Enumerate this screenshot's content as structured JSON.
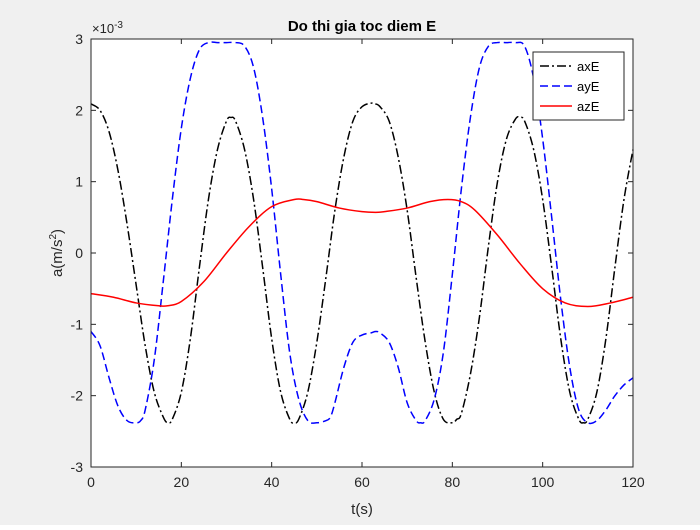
{
  "chart_data": {
    "type": "line",
    "title": "Do thi gia toc diem E",
    "xlabel": "t(s)",
    "ylabel_main": "a(m/s",
    "ylabel_sup": "2",
    "ylabel_close": ")",
    "exponent_base": "×10",
    "exponent_power": "-3",
    "xlim": [
      0,
      120
    ],
    "ylim": [
      -3,
      3
    ],
    "y_scale_factor": 0.001,
    "xticks": [
      0,
      20,
      40,
      60,
      80,
      100,
      120
    ],
    "yticks": [
      -3,
      -2,
      -1,
      0,
      1,
      2,
      3
    ],
    "grid": false,
    "legend_position": "top-right",
    "series": [
      {
        "name": "axE",
        "color": "#000000",
        "dash": "dash-dot",
        "x": [
          0,
          2,
          4,
          6,
          8,
          10,
          12,
          14,
          16,
          17,
          18,
          20,
          22,
          24,
          26,
          28,
          30,
          31,
          32,
          34,
          36,
          38,
          40,
          42,
          44,
          45,
          46,
          48,
          50,
          52,
          54,
          56,
          58,
          60,
          62,
          63,
          64,
          66,
          68,
          70,
          72,
          74,
          76,
          78,
          80,
          81,
          82,
          84,
          86,
          88,
          90,
          92,
          94,
          95,
          96,
          98,
          100,
          102,
          104,
          106,
          108,
          109,
          110,
          112,
          114,
          116,
          118,
          120
        ],
        "y": [
          2.09,
          2.0,
          1.7,
          1.15,
          0.4,
          -0.45,
          -1.3,
          -1.95,
          -2.3,
          -2.38,
          -2.33,
          -1.95,
          -1.2,
          -0.2,
          0.75,
          1.45,
          1.85,
          1.9,
          1.85,
          1.45,
          0.75,
          -0.2,
          -1.2,
          -1.95,
          -2.33,
          -2.38,
          -2.33,
          -1.95,
          -1.25,
          -0.35,
          0.6,
          1.35,
          1.85,
          2.05,
          2.1,
          2.09,
          2.05,
          1.85,
          1.35,
          0.6,
          -0.35,
          -1.25,
          -1.95,
          -2.33,
          -2.38,
          -2.33,
          -2.25,
          -1.7,
          -0.9,
          0.1,
          1.0,
          1.6,
          1.88,
          1.9,
          1.85,
          1.45,
          0.75,
          -0.2,
          -1.2,
          -1.95,
          -2.33,
          -2.38,
          -2.33,
          -1.95,
          -1.2,
          -0.2,
          0.75,
          1.45
        ]
      },
      {
        "name": "ayE",
        "color": "#0000ff",
        "dash": "dashed",
        "x": [
          0,
          2,
          4,
          6,
          8,
          10,
          11,
          12,
          14,
          16,
          18,
          20,
          22,
          24,
          26,
          28,
          30,
          32,
          34,
          36,
          38,
          40,
          42,
          44,
          46,
          48,
          50,
          52,
          53,
          54,
          56,
          58,
          60,
          62,
          63,
          64,
          66,
          68,
          70,
          72,
          73,
          74,
          76,
          78,
          80,
          82,
          84,
          86,
          88,
          90,
          92,
          94,
          96,
          98,
          100,
          102,
          104,
          106,
          108,
          110,
          112,
          114,
          115,
          116,
          118,
          120
        ],
        "y": [
          -1.1,
          -1.3,
          -1.75,
          -2.15,
          -2.35,
          -2.38,
          -2.35,
          -2.2,
          -1.5,
          -0.4,
          0.75,
          1.75,
          2.45,
          2.85,
          2.95,
          2.95,
          2.95,
          2.95,
          2.9,
          2.6,
          1.9,
          0.9,
          -0.3,
          -1.4,
          -2.05,
          -2.35,
          -2.38,
          -2.35,
          -2.3,
          -2.1,
          -1.6,
          -1.25,
          -1.15,
          -1.12,
          -1.1,
          -1.12,
          -1.25,
          -1.6,
          -2.1,
          -2.35,
          -2.38,
          -2.35,
          -2.05,
          -1.4,
          -0.3,
          0.9,
          1.9,
          2.6,
          2.9,
          2.95,
          2.95,
          2.95,
          2.9,
          2.45,
          1.6,
          0.5,
          -0.65,
          -1.6,
          -2.2,
          -2.38,
          -2.35,
          -2.2,
          -2.1,
          -2.0,
          -1.85,
          -1.75
        ]
      },
      {
        "name": "azE",
        "color": "#ff0000",
        "dash": "solid",
        "x": [
          0,
          5,
          10,
          15,
          17,
          20,
          25,
          30,
          35,
          40,
          45,
          47,
          50,
          55,
          60,
          63,
          65,
          70,
          75,
          79,
          82,
          85,
          90,
          95,
          100,
          105,
          110,
          115,
          120
        ],
        "y": [
          -0.57,
          -0.62,
          -0.7,
          -0.74,
          -0.74,
          -0.68,
          -0.4,
          0.0,
          0.37,
          0.65,
          0.75,
          0.75,
          0.72,
          0.63,
          0.58,
          0.57,
          0.58,
          0.63,
          0.72,
          0.75,
          0.72,
          0.6,
          0.25,
          -0.15,
          -0.5,
          -0.7,
          -0.75,
          -0.7,
          -0.62
        ]
      }
    ]
  }
}
